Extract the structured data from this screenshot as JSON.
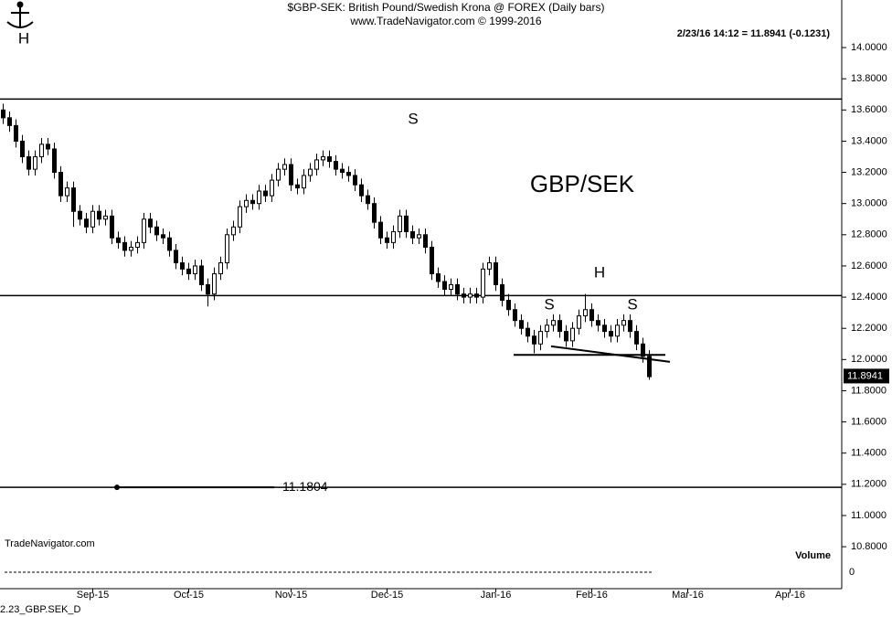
{
  "chart_data": {
    "type": "candlestick",
    "title": "$GBP-SEK:  British Pound/Swedish Krona @ FOREX  (Daily bars)",
    "subtitle": "www.TradeNavigator.com © 1999-2016",
    "quote": "2/23/16 14:12 = 11.8941 (-0.1231)",
    "last_price": 11.8941,
    "source": "TradeNavigator.com",
    "footer": "2.23_GBP.SEK_D",
    "volume_label": "Volume",
    "volume_yticks": [
      0
    ],
    "annotations": [
      "H",
      "S",
      "GBP/SEK",
      "H",
      "S",
      "S"
    ],
    "color": "#000000",
    "levels": [
      13.67,
      12.41,
      11.1804
    ],
    "trendlines": [
      [
        12.03,
        12.03
      ],
      [
        12.085,
        11.985
      ]
    ],
    "ylim": [
      10.531,
      14.305
    ],
    "yticks": [
      {
        "value": 10.8,
        "label": "10.8000"
      },
      {
        "value": 11.0,
        "label": "11.0000"
      },
      {
        "value": 11.2,
        "label": "11.2000"
      },
      {
        "value": 11.4,
        "label": "11.4000"
      },
      {
        "value": 11.6,
        "label": "11.6000"
      },
      {
        "value": 11.8,
        "label": "11.8000"
      },
      {
        "value": 12.0,
        "label": "12.0000"
      },
      {
        "value": 12.2,
        "label": "12.2000"
      },
      {
        "value": 12.4,
        "label": "12.4000"
      },
      {
        "value": 12.6,
        "label": "12.6000"
      },
      {
        "value": 12.8,
        "label": "12.8000"
      },
      {
        "value": 13.0,
        "label": "13.0000"
      },
      {
        "value": 13.2,
        "label": "13.2000"
      },
      {
        "value": 13.4,
        "label": "13.4000"
      },
      {
        "value": 13.6,
        "label": "13.6000"
      },
      {
        "value": 13.8,
        "label": "13.8000"
      },
      {
        "value": 14.0,
        "label": "14.0000"
      }
    ],
    "categories": [
      null,
      null,
      null,
      null,
      null,
      null,
      null,
      null,
      null,
      null,
      null,
      null,
      null,
      null,
      "Sep-15",
      null,
      null,
      null,
      null,
      null,
      null,
      null,
      null,
      null,
      null,
      null,
      null,
      null,
      null,
      "Oct-15",
      null,
      null,
      null,
      null,
      null,
      null,
      null,
      null,
      null,
      null,
      null,
      null,
      null,
      null,
      null,
      "Nov-15",
      null,
      null,
      null,
      null,
      null,
      null,
      null,
      null,
      null,
      null,
      null,
      null,
      null,
      null,
      "Dec-15",
      null,
      null,
      null,
      null,
      null,
      null,
      null,
      null,
      null,
      null,
      null,
      null,
      null,
      null,
      null,
      null,
      "Jan-16",
      null,
      null,
      null,
      null,
      null,
      null,
      null,
      null,
      null,
      null,
      null,
      null,
      null,
      null,
      "Feb-16",
      null,
      null,
      null,
      null,
      null,
      null,
      null,
      null,
      null,
      null,
      null,
      null,
      null,
      null,
      "Mar-16",
      null,
      null,
      null,
      null,
      null,
      null,
      null,
      null,
      null,
      null,
      null,
      null,
      null,
      null,
      null,
      "Apr-16",
      null,
      null,
      null,
      null,
      null,
      null,
      null,
      null
    ],
    "open": [
      13.6,
      13.55,
      13.5,
      13.4,
      13.3,
      13.22,
      13.3,
      13.38,
      13.35,
      13.2,
      13.05,
      13.1,
      12.95,
      12.9,
      12.85,
      12.95,
      12.9,
      12.92,
      12.78,
      12.75,
      12.7,
      12.72,
      12.75,
      12.9,
      12.85,
      12.8,
      12.78,
      12.7,
      12.62,
      12.58,
      12.55,
      12.6,
      12.48,
      12.42,
      12.55,
      12.62,
      12.8,
      12.85,
      12.98,
      13.02,
      13.0,
      13.08,
      13.05,
      13.15,
      13.22,
      13.25,
      13.12,
      13.1,
      13.18,
      13.22,
      13.28,
      13.3,
      13.27,
      13.22,
      13.2,
      13.18,
      13.12,
      13.05,
      13.0,
      12.88,
      12.78,
      12.75,
      12.82,
      12.92,
      12.82,
      12.78,
      12.8,
      12.72,
      12.55,
      12.5,
      12.45,
      12.48,
      12.42,
      12.4,
      12.42,
      12.4,
      12.58,
      12.62,
      12.48,
      12.38,
      12.32,
      12.25,
      12.2,
      12.15,
      12.1,
      12.18,
      12.22,
      12.25,
      12.18,
      12.12,
      12.2,
      12.28,
      12.32,
      12.25,
      12.22,
      12.18,
      12.15,
      12.22,
      12.25,
      12.18,
      12.1,
      12.02,
      null,
      null,
      null,
      null,
      null,
      null,
      null,
      null,
      null,
      null,
      null,
      null,
      null,
      null,
      null,
      null,
      null,
      null,
      null,
      null,
      null,
      null,
      null,
      null,
      null,
      null,
      null,
      null,
      null,
      null
    ],
    "high": [
      13.64,
      13.59,
      13.54,
      13.44,
      13.34,
      13.34,
      13.42,
      13.42,
      13.39,
      13.24,
      13.14,
      13.14,
      12.99,
      12.94,
      12.99,
      12.99,
      12.96,
      12.96,
      12.82,
      12.79,
      12.76,
      12.79,
      12.94,
      12.94,
      12.89,
      12.84,
      12.82,
      12.74,
      12.66,
      12.62,
      12.64,
      12.64,
      12.52,
      12.59,
      12.66,
      12.84,
      12.89,
      13.02,
      13.06,
      13.06,
      13.12,
      13.12,
      13.19,
      13.26,
      13.29,
      13.29,
      13.16,
      13.22,
      13.26,
      13.32,
      13.34,
      13.34,
      13.31,
      13.26,
      13.24,
      13.22,
      13.16,
      13.09,
      13.04,
      12.92,
      12.82,
      12.86,
      12.96,
      12.96,
      12.86,
      12.84,
      12.84,
      12.76,
      12.59,
      12.54,
      12.52,
      12.52,
      12.46,
      12.46,
      12.46,
      12.62,
      12.66,
      12.66,
      12.52,
      12.42,
      12.36,
      12.29,
      12.24,
      12.19,
      12.22,
      12.26,
      12.29,
      12.29,
      12.22,
      12.24,
      12.32,
      12.42,
      12.36,
      12.29,
      12.26,
      12.22,
      12.26,
      12.29,
      12.29,
      12.22,
      12.14,
      12.06,
      null,
      null,
      null,
      null,
      null,
      null,
      null,
      null,
      null,
      null,
      null,
      null,
      null,
      null,
      null,
      null,
      null,
      null,
      null,
      null,
      null,
      null,
      null,
      null,
      null,
      null,
      null,
      null,
      null,
      null
    ],
    "low": [
      13.51,
      13.46,
      13.36,
      13.26,
      13.18,
      13.18,
      13.26,
      13.31,
      13.16,
      13.01,
      13.01,
      12.85,
      12.86,
      12.81,
      12.81,
      12.86,
      12.86,
      12.74,
      12.71,
      12.66,
      12.66,
      12.68,
      12.71,
      12.81,
      12.76,
      12.74,
      12.66,
      12.58,
      12.54,
      12.51,
      12.51,
      12.44,
      12.34,
      12.38,
      12.51,
      12.58,
      12.76,
      12.81,
      12.94,
      12.96,
      12.96,
      13.01,
      13.01,
      13.11,
      13.18,
      13.08,
      13.06,
      13.06,
      13.14,
      13.18,
      13.24,
      13.23,
      13.18,
      13.16,
      13.14,
      13.08,
      13.01,
      12.96,
      12.84,
      12.74,
      12.71,
      12.71,
      12.78,
      12.78,
      12.74,
      12.74,
      12.68,
      12.51,
      12.46,
      12.41,
      12.41,
      12.38,
      12.36,
      12.36,
      12.36,
      12.36,
      12.54,
      12.44,
      12.34,
      12.28,
      12.21,
      12.16,
      12.11,
      12.04,
      12.06,
      12.14,
      12.18,
      12.14,
      12.08,
      12.08,
      12.16,
      12.24,
      12.21,
      12.18,
      12.14,
      12.11,
      12.11,
      12.18,
      12.14,
      12.06,
      11.98,
      11.87,
      null,
      null,
      null,
      null,
      null,
      null,
      null,
      null,
      null,
      null,
      null,
      null,
      null,
      null,
      null,
      null,
      null,
      null,
      null,
      null,
      null,
      null,
      null,
      null,
      null,
      null,
      null,
      null,
      null,
      null
    ],
    "close": [
      13.55,
      13.5,
      13.4,
      13.3,
      13.22,
      13.3,
      13.38,
      13.35,
      13.2,
      13.05,
      13.1,
      12.95,
      12.9,
      12.85,
      12.95,
      12.9,
      12.92,
      12.78,
      12.75,
      12.7,
      12.72,
      12.75,
      12.9,
      12.85,
      12.8,
      12.78,
      12.7,
      12.62,
      12.58,
      12.55,
      12.6,
      12.48,
      12.42,
      12.55,
      12.62,
      12.8,
      12.85,
      12.98,
      13.02,
      13.0,
      13.08,
      13.05,
      13.15,
      13.22,
      13.25,
      13.12,
      13.1,
      13.18,
      13.22,
      13.28,
      13.3,
      13.27,
      13.22,
      13.2,
      13.18,
      13.12,
      13.05,
      13.0,
      12.88,
      12.78,
      12.75,
      12.82,
      12.92,
      12.82,
      12.78,
      12.8,
      12.72,
      12.55,
      12.5,
      12.45,
      12.48,
      12.42,
      12.4,
      12.42,
      12.4,
      12.58,
      12.62,
      12.48,
      12.38,
      12.32,
      12.25,
      12.2,
      12.15,
      12.1,
      12.18,
      12.22,
      12.25,
      12.18,
      12.12,
      12.2,
      12.28,
      12.32,
      12.25,
      12.22,
      12.18,
      12.15,
      12.22,
      12.25,
      12.18,
      12.1,
      12.02,
      11.89,
      null,
      null,
      null,
      null,
      null,
      null,
      null,
      null,
      null,
      null,
      null,
      null,
      null,
      null,
      null,
      null,
      null,
      null,
      null,
      null,
      null,
      null,
      null,
      null,
      null,
      null,
      null,
      null,
      null,
      null
    ]
  }
}
